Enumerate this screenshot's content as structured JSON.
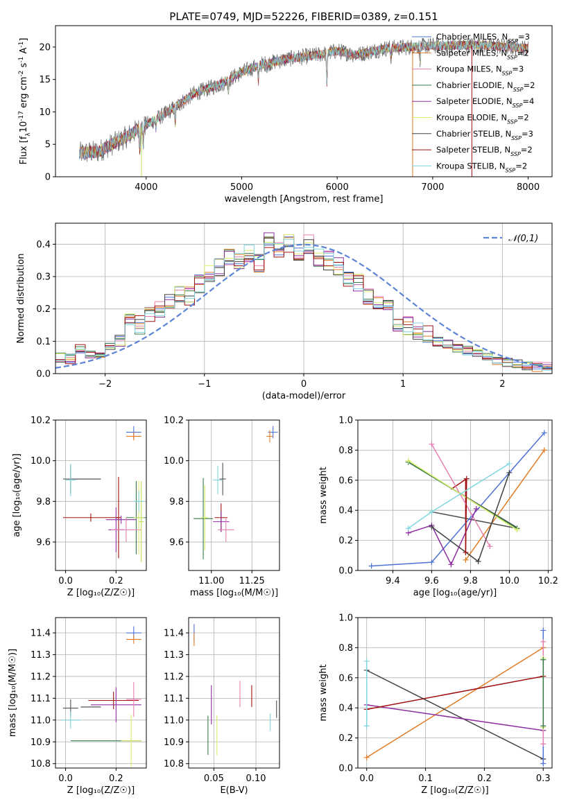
{
  "title": "PLATE=0749, MJD=52226, FIBERID=0389, z=0.151",
  "colors": {
    "blue": "#4c72d6",
    "orange": "#e07b24",
    "pink": "#e77fb0",
    "darkgray": "#505050",
    "yellowgreen": "#bde05a",
    "green": "#3a7a4a",
    "purple": "#8e2da0",
    "lime": "#d8ee6a",
    "black": "#404040",
    "darkred": "#a01010",
    "cyan": "#7fd6e0",
    "normal": "#5b84d6"
  },
  "chart_data": [
    {
      "id": "spectrum",
      "type": "line",
      "xlabel": "wavelength [Angstrom, rest frame]",
      "ylabel_parts": [
        "Flux [f",
        "λ",
        "10",
        "-17",
        " erg cm",
        "-2",
        " s",
        "-1",
        " A",
        "-1",
        "]"
      ],
      "xlim": [
        3050,
        8250
      ],
      "ylim": [
        0,
        23.3
      ],
      "xticks": [
        4000,
        5000,
        6000,
        7000,
        8000
      ],
      "yticks": [
        0,
        5,
        10,
        15,
        20
      ],
      "data_range": [
        3300,
        8000
      ],
      "continuum_knots": [
        [
          3300,
          3.6
        ],
        [
          3500,
          3.9
        ],
        [
          3800,
          6.2
        ],
        [
          3950,
          7.6
        ],
        [
          4200,
          9.7
        ],
        [
          4500,
          12.8
        ],
        [
          4800,
          14.4
        ],
        [
          5000,
          16.1
        ],
        [
          5200,
          17.3
        ],
        [
          5500,
          18.2
        ],
        [
          5800,
          18.8
        ],
        [
          6000,
          19.4
        ],
        [
          6200,
          18.8
        ],
        [
          6500,
          19.8
        ],
        [
          7000,
          20.2
        ],
        [
          7500,
          20.3
        ],
        [
          8000,
          19.8
        ]
      ],
      "absorption_lines": [
        [
          3934,
          3.5
        ],
        [
          3969,
          3.0
        ],
        [
          4102,
          1.5
        ],
        [
          4304,
          2.5
        ],
        [
          4861,
          1.8
        ],
        [
          5175,
          2.5
        ],
        [
          5270,
          1.2
        ],
        [
          5892,
          5.0
        ],
        [
          6563,
          1.6
        ],
        [
          6867,
          2.0
        ]
      ],
      "legend": [
        {
          "label": "Chabrier MILES, N",
          "sub": "SSP",
          "suffix": "=3",
          "color": "blue"
        },
        {
          "label": "Salpeter MILES, N",
          "sub": "SSP",
          "suffix": "=2",
          "color": "orange"
        },
        {
          "label": "Kroupa MILES, N",
          "sub": "SSP",
          "suffix": "=3",
          "color": "pink"
        },
        {
          "label": "Chabrier ELODIE, N",
          "sub": "SSP",
          "suffix": "=2",
          "color": "green"
        },
        {
          "label": "Salpeter ELODIE, N",
          "sub": "SSP",
          "suffix": "=4",
          "color": "purple"
        },
        {
          "label": "Kroupa ELODIE, N",
          "sub": "SSP",
          "suffix": "=2",
          "color": "lime"
        },
        {
          "label": "Chabrier STELIB, N",
          "sub": "SSP",
          "suffix": "=3",
          "color": "black"
        },
        {
          "label": "Salpeter STELIB, N",
          "sub": "SSP",
          "suffix": "=2",
          "color": "darkred"
        },
        {
          "label": "Kroupa STELIB, N",
          "sub": "SSP",
          "suffix": "=2",
          "color": "cyan"
        }
      ]
    },
    {
      "id": "residuals",
      "type": "step_histogram",
      "xlabel": "(data-model)/error",
      "ylabel": "Normed distribution",
      "xlim": [
        -2.5,
        2.5
      ],
      "ylim": [
        0,
        0.465
      ],
      "xticks": [
        -2,
        -1,
        0,
        1,
        2
      ],
      "yticks": [
        0.0,
        0.1,
        0.2,
        0.3,
        0.4
      ],
      "bin_width": 0.1,
      "centers": [
        -2.45,
        -2.35,
        -2.25,
        -2.15,
        -2.05,
        -1.95,
        -1.85,
        -1.75,
        -1.65,
        -1.55,
        -1.45,
        -1.35,
        -1.25,
        -1.15,
        -1.05,
        -0.95,
        -0.85,
        -0.75,
        -0.65,
        -0.55,
        -0.45,
        -0.35,
        -0.25,
        -0.15,
        -0.05,
        0.05,
        0.15,
        0.25,
        0.35,
        0.45,
        0.55,
        0.65,
        0.75,
        0.85,
        0.95,
        1.05,
        1.15,
        1.25,
        1.35,
        1.45,
        1.55,
        1.65,
        1.75,
        1.85,
        1.95,
        2.05,
        2.15,
        2.25,
        2.35,
        2.45
      ],
      "base_values": [
        0.05,
        0.045,
        0.075,
        0.06,
        0.06,
        0.085,
        0.11,
        0.16,
        0.15,
        0.18,
        0.2,
        0.22,
        0.24,
        0.24,
        0.28,
        0.31,
        0.33,
        0.36,
        0.35,
        0.37,
        0.34,
        0.41,
        0.38,
        0.4,
        0.37,
        0.4,
        0.36,
        0.35,
        0.33,
        0.3,
        0.28,
        0.24,
        0.23,
        0.2,
        0.16,
        0.15,
        0.13,
        0.12,
        0.1,
        0.09,
        0.08,
        0.07,
        0.06,
        0.05,
        0.04,
        0.035,
        0.03,
        0.025,
        0.02,
        0.02
      ],
      "series_colors": [
        "blue",
        "orange",
        "pink",
        "green",
        "purple",
        "lime",
        "black",
        "darkred",
        "cyan"
      ],
      "normal_curve": {
        "label": "𝒩(0,1)",
        "color": "normal",
        "mean": 0,
        "sigma": 1
      }
    },
    {
      "id": "age_vs_Z",
      "type": "errorbar",
      "xlabel": "Z [log₁₀(Z/Z☉)]",
      "ylabel": "age  [log₁₀(age/yr)]",
      "xlim": [
        -0.04,
        0.32
      ],
      "ylim": [
        9.46,
        10.2
      ],
      "xticks": [
        0.0,
        0.2
      ],
      "yticks": [
        9.6,
        9.8,
        10.0,
        10.2
      ],
      "points": [
        {
          "x": 0.27,
          "y": 10.14,
          "xerr": 0.03,
          "yerr": 0.03,
          "color": "blue"
        },
        {
          "x": 0.27,
          "y": 10.12,
          "xerr": 0.03,
          "yerr": 0.02,
          "color": "orange"
        },
        {
          "x": 0.02,
          "y": 9.91,
          "xerr": 0.03,
          "yerr": 0.07,
          "color": "darkgray"
        },
        {
          "x": 0.02,
          "y": 9.905,
          "xerr": 0.02,
          "yerr": 0.08,
          "color": "cyan"
        },
        {
          "x": 0.09,
          "y": 9.91,
          "xerr": 0.05,
          "yerr": 0.0,
          "color": "black"
        },
        {
          "x": 0.1,
          "y": 9.72,
          "xerr": 0.11,
          "yerr": 0.02,
          "color": "darkred"
        },
        {
          "x": 0.21,
          "y": 9.72,
          "xerr": 0.01,
          "yerr": 0.2,
          "color": "darkred"
        },
        {
          "x": 0.28,
          "y": 9.72,
          "xerr": 0.04,
          "yerr": 0.18,
          "color": "green"
        },
        {
          "x": 0.22,
          "y": 9.71,
          "xerr": 0.06,
          "yerr": 0.02,
          "color": "purple"
        },
        {
          "x": 0.2,
          "y": 9.66,
          "xerr": 0.03,
          "yerr": 0.11,
          "color": "purple"
        },
        {
          "x": 0.24,
          "y": 9.66,
          "xerr": 0.06,
          "yerr": 0.06,
          "color": "pink"
        },
        {
          "x": 0.29,
          "y": 9.72,
          "xerr": 0.02,
          "yerr": 0.18,
          "color": "lime"
        },
        {
          "x": 0.3,
          "y": 9.7,
          "xerr": 0.01,
          "yerr": 0.2,
          "color": "yellowgreen"
        },
        {
          "x": 0.29,
          "y": 9.8,
          "xerr": 0.02,
          "yerr": 0.05,
          "color": "cyan"
        }
      ]
    },
    {
      "id": "age_vs_mass",
      "type": "errorbar",
      "xlabel": "mass [log₁₀(M/M☉)]",
      "ylabel": "",
      "xlim": [
        10.86,
        11.42
      ],
      "ylim": [
        9.46,
        10.2
      ],
      "xticks": [
        11.0,
        11.25
      ],
      "xtick_labels": [
        "11.00",
        "11.25"
      ],
      "yticks": [
        9.6,
        9.8,
        10.0,
        10.2
      ],
      "points": [
        {
          "x": 11.38,
          "y": 10.14,
          "xerr": 0.03,
          "yerr": 0.03,
          "color": "blue"
        },
        {
          "x": 11.36,
          "y": 10.12,
          "xerr": 0.02,
          "yerr": 0.03,
          "color": "orange"
        },
        {
          "x": 11.07,
          "y": 9.91,
          "xerr": 0.02,
          "yerr": 0.08,
          "color": "darkgray"
        },
        {
          "x": 11.04,
          "y": 9.905,
          "xerr": 0.03,
          "yerr": 0.07,
          "color": "cyan"
        },
        {
          "x": 11.06,
          "y": 9.72,
          "xerr": 0.04,
          "yerr": 0.07,
          "color": "darkred"
        },
        {
          "x": 10.95,
          "y": 9.715,
          "xerr": 0.06,
          "yerr": 0.2,
          "color": "green"
        },
        {
          "x": 10.96,
          "y": 9.72,
          "xerr": 0.02,
          "yerr": 0.16,
          "color": "lime"
        },
        {
          "x": 11.06,
          "y": 9.7,
          "xerr": 0.05,
          "yerr": 0.05,
          "color": "purple"
        },
        {
          "x": 11.09,
          "y": 9.66,
          "xerr": 0.05,
          "yerr": 0.06,
          "color": "pink"
        }
      ]
    },
    {
      "id": "weight_vs_age",
      "type": "line",
      "xlabel": "age  [log₁₀(age/yr)]",
      "ylabel": "mass weight",
      "xlim": [
        9.22,
        10.22
      ],
      "ylim": [
        0.0,
        1.0
      ],
      "xticks": [
        9.4,
        9.6,
        9.8,
        10.0,
        10.2
      ],
      "yticks": [
        0.0,
        0.2,
        0.4,
        0.6,
        0.8,
        1.0
      ],
      "series": [
        {
          "color": "blue",
          "x": [
            9.29,
            9.6,
            10.0,
            10.18
          ],
          "y": [
            0.03,
            0.055,
            0.65,
            0.915
          ]
        },
        {
          "color": "orange",
          "x": [
            9.775,
            10.18
          ],
          "y": [
            0.07,
            0.8
          ]
        },
        {
          "color": "pink",
          "x": [
            9.6,
            9.9
          ],
          "y": [
            0.84,
            0.16
          ]
        },
        {
          "color": "green",
          "x": [
            9.48,
            10.04
          ],
          "y": [
            0.72,
            0.28
          ]
        },
        {
          "color": "purple",
          "x": [
            9.48,
            9.6,
            9.7,
            9.83
          ],
          "y": [
            0.25,
            0.3,
            0.04,
            0.41
          ]
        },
        {
          "color": "lime",
          "x": [
            9.48,
            10.04
          ],
          "y": [
            0.73,
            0.27
          ]
        },
        {
          "color": "black",
          "x": [
            9.6,
            9.84,
            10.0
          ],
          "y": [
            0.29,
            0.06,
            0.65
          ]
        },
        {
          "color": "darkred",
          "x": [
            9.775,
            9.78
          ],
          "y": [
            0.12,
            0.61
          ]
        },
        {
          "color": "cyan",
          "x": [
            9.48,
            9.6,
            10.0
          ],
          "y": [
            0.28,
            0.39,
            0.71
          ]
        }
      ],
      "extra_segments": [
        {
          "color": "darkred",
          "x": [
            9.775,
            9.775
          ],
          "y": [
            0.12,
            0.61
          ]
        },
        {
          "color": "darkred",
          "x": [
            9.7,
            9.78
          ],
          "y": [
            0.54,
            0.61
          ]
        },
        {
          "color": "darkgray",
          "x": [
            9.6,
            10.04
          ],
          "y": [
            0.39,
            0.28
          ]
        },
        {
          "color": "black",
          "x": [
            9.48,
            10.04
          ],
          "y": [
            0.72,
            0.285
          ]
        }
      ]
    },
    {
      "id": "mass_vs_Z",
      "type": "errorbar",
      "xlabel": "Z [log₁₀(Z/Z☉)]",
      "ylabel": "mass [log₁₀(M/M☉)]",
      "xlim": [
        -0.04,
        0.32
      ],
      "ylim": [
        10.78,
        11.47
      ],
      "xticks": [
        0.0,
        0.2
      ],
      "yticks": [
        10.8,
        10.9,
        11.0,
        11.1,
        11.2,
        11.3,
        11.4
      ],
      "points": [
        {
          "x": 0.27,
          "y": 11.4,
          "xerr": 0.03,
          "yerr": 0.03,
          "color": "blue"
        },
        {
          "x": 0.27,
          "y": 11.37,
          "xerr": 0.03,
          "yerr": 0.02,
          "color": "orange"
        },
        {
          "x": 0.02,
          "y": 11.055,
          "xerr": 0.03,
          "yerr": 0.04,
          "color": "darkgray"
        },
        {
          "x": 0.02,
          "y": 11.0,
          "xerr": 0.04,
          "yerr": 0.04,
          "color": "cyan"
        },
        {
          "x": 0.1,
          "y": 11.06,
          "xerr": 0.04,
          "yerr": 0.0,
          "color": "black"
        },
        {
          "x": 0.19,
          "y": 11.09,
          "xerr": 0.1,
          "yerr": 0.04,
          "color": "darkred"
        },
        {
          "x": 0.2,
          "y": 11.07,
          "xerr": 0.1,
          "yerr": 0.08,
          "color": "purple"
        },
        {
          "x": 0.27,
          "y": 11.095,
          "xerr": 0.03,
          "yerr": 0.08,
          "color": "pink"
        },
        {
          "x": 0.16,
          "y": 10.905,
          "xerr": 0.14,
          "yerr": 0.0,
          "color": "green"
        },
        {
          "x": 0.26,
          "y": 10.905,
          "xerr": 0.04,
          "yerr": 0.12,
          "color": "lime"
        }
      ]
    },
    {
      "id": "mass_vs_ebv",
      "type": "errorbar",
      "xlabel": "E(B-V)",
      "ylabel": "",
      "xlim": [
        0.02,
        0.128
      ],
      "ylim": [
        10.78,
        11.47
      ],
      "xticks": [
        0.05,
        0.1
      ],
      "xtick_labels": [
        "0.05",
        "0.10"
      ],
      "yticks": [
        10.8,
        10.9,
        11.0,
        11.1,
        11.2,
        11.3,
        11.4
      ],
      "points": [
        {
          "x": 0.0265,
          "y": 11.4,
          "xerr": 0,
          "yerr": 0.04,
          "color": "blue"
        },
        {
          "x": 0.0265,
          "y": 11.37,
          "xerr": 0,
          "yerr": 0.03,
          "color": "orange"
        },
        {
          "x": 0.043,
          "y": 10.93,
          "xerr": 0,
          "yerr": 0.09,
          "color": "green"
        },
        {
          "x": 0.047,
          "y": 11.07,
          "xerr": 0,
          "yerr": 0.09,
          "color": "purple"
        },
        {
          "x": 0.0535,
          "y": 10.93,
          "xerr": 0,
          "yerr": 0.09,
          "color": "lime"
        },
        {
          "x": 0.081,
          "y": 11.12,
          "xerr": 0,
          "yerr": 0.06,
          "color": "pink"
        },
        {
          "x": 0.095,
          "y": 11.11,
          "xerr": 0,
          "yerr": 0.05,
          "color": "darkred"
        },
        {
          "x": 0.117,
          "y": 10.99,
          "xerr": 0,
          "yerr": 0.04,
          "color": "cyan"
        },
        {
          "x": 0.1245,
          "y": 11.05,
          "xerr": 0,
          "yerr": 0.04,
          "color": "darkgray"
        }
      ]
    },
    {
      "id": "weight_vs_Z",
      "type": "line",
      "xlabel": "Z [log₁₀(Z/Z☉)]",
      "ylabel": "mass weight",
      "xlim": [
        -0.015,
        0.315
      ],
      "ylim": [
        0.0,
        1.0
      ],
      "xticks": [
        0.0,
        0.1,
        0.2,
        0.3
      ],
      "yticks": [
        0.0,
        0.2,
        0.4,
        0.6,
        0.8,
        1.0
      ],
      "series": [
        {
          "color": "orange",
          "x": [
            0.0,
            0.3
          ],
          "y": [
            0.07,
            0.8
          ]
        },
        {
          "color": "black",
          "x": [
            0.0,
            0.3
          ],
          "y": [
            0.65,
            0.06
          ]
        },
        {
          "color": "purple",
          "x": [
            0.0,
            0.3
          ],
          "y": [
            0.42,
            0.25
          ]
        },
        {
          "color": "darkred",
          "x": [
            0.0,
            0.3
          ],
          "y": [
            0.39,
            0.61
          ]
        },
        {
          "color": "cyan",
          "x": [
            0.0,
            0.0
          ],
          "y": [
            0.28,
            0.71
          ]
        },
        {
          "color": "blue",
          "x": [
            0.3,
            0.3
          ],
          "y": [
            0.03,
            0.915
          ]
        },
        {
          "color": "pink",
          "x": [
            0.3,
            0.3
          ],
          "y": [
            0.16,
            0.84
          ]
        },
        {
          "color": "lime",
          "x": [
            0.3,
            0.3
          ],
          "y": [
            0.27,
            0.73
          ]
        },
        {
          "color": "green",
          "x": [
            0.3,
            0.3
          ],
          "y": [
            0.28,
            0.72
          ]
        }
      ]
    }
  ]
}
